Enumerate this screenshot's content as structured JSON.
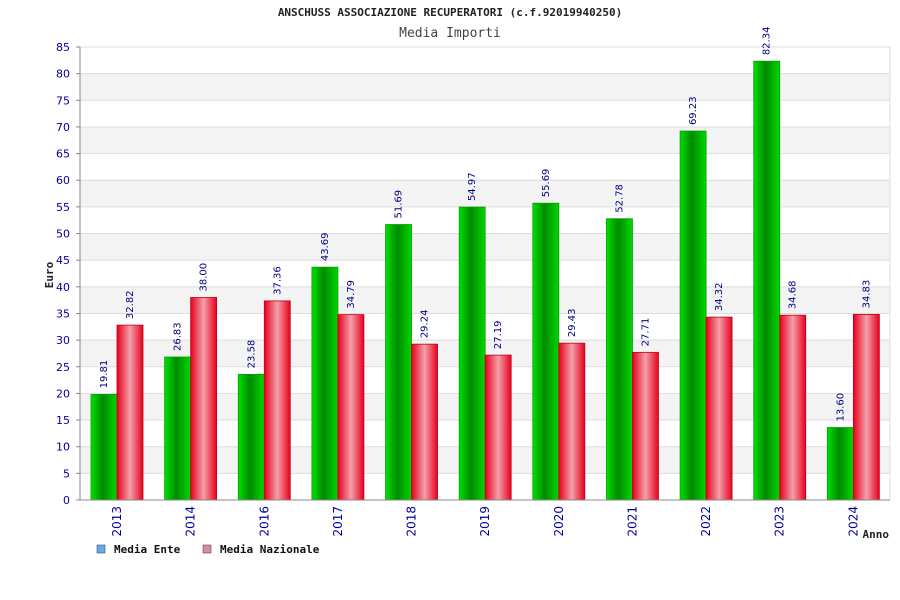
{
  "chart_data": {
    "type": "bar",
    "title": "ANSCHUSS ASSOCIAZIONE RECUPERATORI (c.f.92019940250)",
    "subtitle": "Media Importi",
    "xlabel": "Anno",
    "ylabel": "Euro",
    "ylim": [
      0,
      85
    ],
    "ytick_step": 5,
    "grid": true,
    "legend_position": "bottom-left",
    "categories": [
      "2013",
      "2014",
      "2016",
      "2017",
      "2018",
      "2019",
      "2020",
      "2021",
      "2022",
      "2023",
      "2024"
    ],
    "series": [
      {
        "name": "Media Ente",
        "color": "#00c000",
        "legend_color": "#66aaee",
        "values": [
          19.81,
          26.83,
          23.58,
          43.69,
          51.69,
          54.97,
          55.69,
          52.78,
          69.23,
          82.34,
          13.6
        ],
        "labels": [
          "19.81",
          "26.83",
          "23.58",
          "43.69",
          "51.69",
          "54.97",
          "55.69",
          "52.78",
          "69.23",
          "82.34",
          "13.60"
        ]
      },
      {
        "name": "Media Nazionale",
        "color": "#e8102a",
        "legend_color": "#dd88aa",
        "values": [
          32.82,
          38.0,
          37.36,
          34.79,
          29.24,
          27.19,
          29.43,
          27.71,
          34.32,
          34.68,
          34.83
        ],
        "labels": [
          "32.82",
          "38.00",
          "37.36",
          "34.79",
          "29.24",
          "27.19",
          "29.43",
          "27.71",
          "34.32",
          "34.68",
          "34.83"
        ]
      }
    ]
  }
}
